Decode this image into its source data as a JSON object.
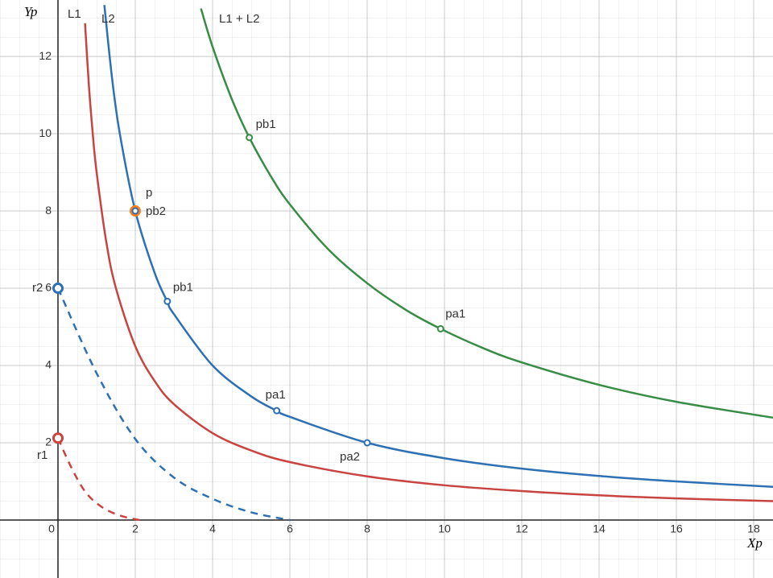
{
  "chart_data": {
    "type": "line",
    "x_label": "Xp",
    "y_label": "Yp",
    "xlim": [
      -1.5,
      18.5
    ],
    "ylim": [
      -1.5,
      13.46
    ],
    "xticks": [
      0,
      2,
      4,
      6,
      8,
      10,
      12,
      14,
      16,
      18
    ],
    "yticks": [
      2,
      4,
      6,
      8,
      10,
      12
    ],
    "grid": true,
    "series": [
      {
        "name": "L1",
        "color": "#c74440",
        "dash": false,
        "x": [
          0.7,
          0.8,
          0.9,
          1,
          1.25,
          1.5,
          2,
          2.5,
          3,
          4,
          5,
          6,
          8,
          10,
          12,
          14,
          16,
          18.5
        ],
        "values": [
          12.86,
          11.25,
          10,
          9,
          7.2,
          6,
          4.5,
          3.6,
          3,
          2.25,
          1.8,
          1.5,
          1.13,
          0.9,
          0.75,
          0.64,
          0.56,
          0.49
        ]
      },
      {
        "name": "L2",
        "color": "#2d70b3",
        "dash": false,
        "x": [
          1.2,
          1.4,
          1.6,
          2,
          2.5,
          2.83,
          3,
          4,
          5,
          5.66,
          6,
          8,
          10,
          12,
          14,
          16,
          18.5
        ],
        "values": [
          13.33,
          11.43,
          10,
          8,
          6.4,
          5.65,
          5.33,
          4,
          3.2,
          2.83,
          2.67,
          2,
          1.6,
          1.33,
          1.14,
          1,
          0.86
        ]
      },
      {
        "name": "L1 + L2",
        "color": "#388c46",
        "dash": false,
        "x": [
          3.7,
          4,
          4.5,
          4.95,
          5.5,
          6,
          7,
          8,
          9,
          9.9,
          11,
          12,
          14,
          16,
          18.5
        ],
        "values": [
          13.24,
          12.25,
          10.89,
          9.9,
          8.91,
          8.17,
          7,
          6.13,
          5.44,
          4.95,
          4.45,
          4.08,
          3.5,
          3.06,
          2.65
        ]
      },
      {
        "color": "#2d70b3",
        "dash": true,
        "x": [
          0,
          1,
          2,
          3,
          4,
          5,
          6
        ],
        "values": [
          6,
          3.8,
          2.1,
          1.1,
          0.55,
          0.2,
          0
        ]
      },
      {
        "color": "#c74440",
        "dash": true,
        "x": [
          0,
          0.35,
          0.7,
          1.06,
          1.41,
          1.77,
          2.12
        ],
        "values": [
          2.12,
          1.35,
          0.74,
          0.39,
          0.19,
          0.07,
          0
        ]
      }
    ],
    "points": [
      {
        "label": "pb1",
        "x": 4.95,
        "y": 9.9,
        "color": "#388c46"
      },
      {
        "label": "pa1",
        "x": 9.9,
        "y": 4.95,
        "color": "#388c46"
      },
      {
        "label": "p",
        "x": 2,
        "y": 8,
        "color": "#fa7e19"
      },
      {
        "label": "pb2",
        "x": 2,
        "y": 8,
        "color": "#2d70b3"
      },
      {
        "label": "pb1",
        "x": 2.83,
        "y": 5.66,
        "color": "#2d70b3"
      },
      {
        "label": "pa1",
        "x": 5.66,
        "y": 2.83,
        "color": "#2d70b3"
      },
      {
        "label": "pa2",
        "x": 8,
        "y": 2,
        "color": "#2d70b3"
      },
      {
        "label": "r2",
        "x": 0,
        "y": 6,
        "color": "#2d70b3"
      },
      {
        "label": "r1",
        "x": 0,
        "y": 2.12,
        "color": "#c74440"
      }
    ]
  }
}
